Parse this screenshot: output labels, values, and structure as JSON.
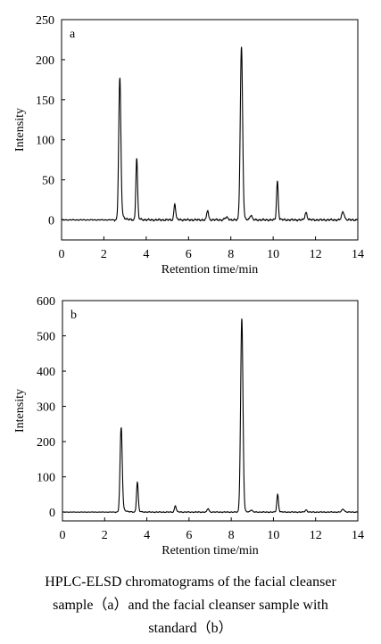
{
  "chart_data": [
    {
      "type": "line",
      "panel_label": "a",
      "xlabel": "Retention time/min",
      "ylabel": "Intensity",
      "xlim": [
        0,
        14
      ],
      "ylim": [
        -25,
        250
      ],
      "x_ticks": [
        0,
        2,
        4,
        6,
        8,
        10,
        12,
        14
      ],
      "y_ticks": [
        0,
        50,
        100,
        150,
        200,
        250
      ],
      "baseline": 0,
      "peaks": [
        {
          "rt": 2.75,
          "height": 175,
          "width": 0.05,
          "tail": 18
        },
        {
          "rt": 3.55,
          "height": 77,
          "width": 0.04,
          "tail": 4
        },
        {
          "rt": 5.35,
          "height": 20,
          "width": 0.04,
          "tail": 2
        },
        {
          "rt": 6.9,
          "height": 12,
          "width": 0.04,
          "tail": 1
        },
        {
          "rt": 7.8,
          "height": 3,
          "width": 0.08,
          "tail": 0
        },
        {
          "rt": 8.5,
          "height": 215,
          "width": 0.055,
          "tail": 6
        },
        {
          "rt": 8.95,
          "height": 6,
          "width": 0.05,
          "tail": 0
        },
        {
          "rt": 10.2,
          "height": 48,
          "width": 0.04,
          "tail": 2
        },
        {
          "rt": 11.55,
          "height": 9,
          "width": 0.05,
          "tail": 1
        },
        {
          "rt": 13.3,
          "height": 10,
          "width": 0.06,
          "tail": 1
        }
      ]
    },
    {
      "type": "line",
      "panel_label": "b",
      "xlabel": "Retention time/min",
      "ylabel": "Intensity",
      "xlim": [
        0,
        14
      ],
      "ylim": [
        -25,
        600
      ],
      "x_ticks": [
        0,
        2,
        4,
        6,
        8,
        10,
        12,
        14
      ],
      "y_ticks": [
        0,
        100,
        200,
        300,
        400,
        500,
        600
      ],
      "baseline": 0,
      "peaks": [
        {
          "rt": 2.78,
          "height": 238,
          "width": 0.05,
          "tail": 25
        },
        {
          "rt": 3.55,
          "height": 85,
          "width": 0.04,
          "tail": 5
        },
        {
          "rt": 5.35,
          "height": 18,
          "width": 0.04,
          "tail": 2
        },
        {
          "rt": 6.9,
          "height": 10,
          "width": 0.04,
          "tail": 1
        },
        {
          "rt": 8.5,
          "height": 548,
          "width": 0.055,
          "tail": 10
        },
        {
          "rt": 8.95,
          "height": 6,
          "width": 0.05,
          "tail": 0
        },
        {
          "rt": 10.2,
          "height": 50,
          "width": 0.04,
          "tail": 2
        },
        {
          "rt": 11.55,
          "height": 6,
          "width": 0.05,
          "tail": 0
        },
        {
          "rt": 13.3,
          "height": 8,
          "width": 0.06,
          "tail": 1
        }
      ]
    }
  ],
  "caption": {
    "line1": "HPLC-ELSD chromatograms of the facial cleanser",
    "line2": "sample（a）and the facial cleanser sample with",
    "line3": "standard（b）"
  }
}
